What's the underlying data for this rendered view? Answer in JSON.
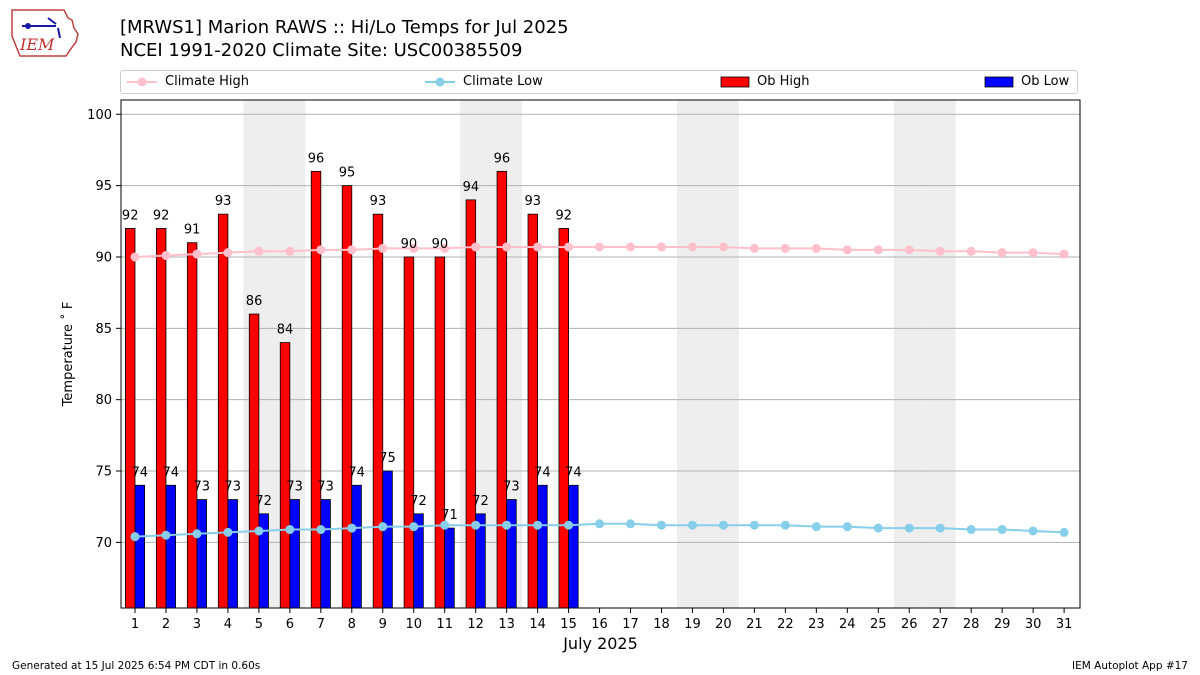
{
  "header": {
    "logo_text": "IEM",
    "title_line1": "[MRWS1] Marion RAWS :: Hi/Lo Temps for Jul 2025",
    "title_line2": "NCEI 1991-2020 Climate Site: USC00385509"
  },
  "footer": {
    "left": "Generated at 15 Jul 2025 6:54 PM CDT in 0.60s",
    "right": "IEM Autoplot App #17"
  },
  "colors": {
    "ob_high": "#ff0000",
    "ob_low": "#0000ff",
    "climate_high": "#ffc0cb",
    "climate_low": "#87ceeb",
    "weekend_shade": "#eeeeee",
    "grid": "#b0b0b0"
  },
  "chart_data": {
    "type": "bar",
    "xlabel": "July 2025",
    "ylabel": "Temperature ˚ F",
    "ylim": [
      65.4,
      101.0
    ],
    "yticks": [
      70,
      75,
      80,
      85,
      90,
      95,
      100
    ],
    "grid": "horizontal",
    "legend_position": "top",
    "days": [
      1,
      2,
      3,
      4,
      5,
      6,
      7,
      8,
      9,
      10,
      11,
      12,
      13,
      14,
      15,
      16,
      17,
      18,
      19,
      20,
      21,
      22,
      23,
      24,
      25,
      26,
      27,
      28,
      29,
      30,
      31
    ],
    "weekend_days": [
      5,
      6,
      12,
      13,
      19,
      20,
      26,
      27
    ],
    "series": [
      {
        "name": "Climate High",
        "kind": "line",
        "values": [
          90.0,
          90.1,
          90.2,
          90.3,
          90.4,
          90.4,
          90.5,
          90.5,
          90.6,
          90.6,
          90.6,
          90.7,
          90.7,
          90.7,
          90.7,
          90.7,
          90.7,
          90.7,
          90.7,
          90.7,
          90.6,
          90.6,
          90.6,
          90.5,
          90.5,
          90.5,
          90.4,
          90.4,
          90.3,
          90.3,
          90.2
        ]
      },
      {
        "name": "Climate Low",
        "kind": "line",
        "values": [
          70.4,
          70.5,
          70.6,
          70.7,
          70.8,
          70.9,
          70.9,
          71.0,
          71.1,
          71.1,
          71.2,
          71.2,
          71.2,
          71.2,
          71.2,
          71.3,
          71.3,
          71.2,
          71.2,
          71.2,
          71.2,
          71.2,
          71.1,
          71.1,
          71.0,
          71.0,
          71.0,
          70.9,
          70.9,
          70.8,
          70.7
        ]
      },
      {
        "name": "Ob High",
        "kind": "bar",
        "values": [
          92,
          92,
          91,
          93,
          86,
          84,
          96,
          95,
          93,
          90,
          90,
          94,
          96,
          93,
          92
        ]
      },
      {
        "name": "Ob Low",
        "kind": "bar",
        "values": [
          74,
          74,
          73,
          73,
          72,
          73,
          73,
          74,
          75,
          72,
          71,
          72,
          73,
          74,
          74
        ]
      }
    ]
  }
}
